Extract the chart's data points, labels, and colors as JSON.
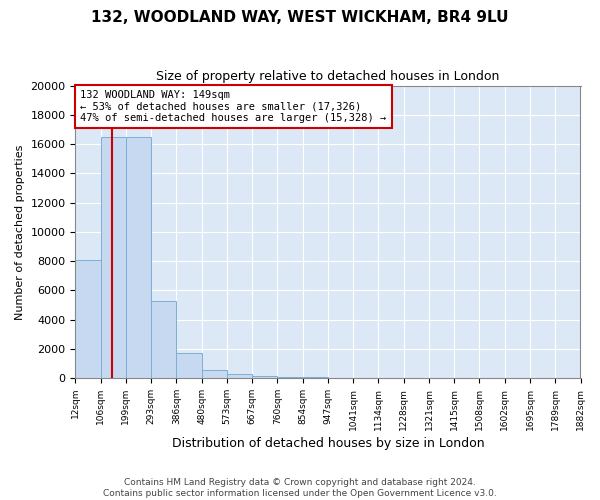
{
  "title": "132, WOODLAND WAY, WEST WICKHAM, BR4 9LU",
  "subtitle": "Size of property relative to detached houses in London",
  "xlabel": "Distribution of detached houses by size in London",
  "ylabel": "Number of detached properties",
  "bar_values": [
    8050,
    16500,
    16500,
    5300,
    1700,
    550,
    300,
    150,
    80,
    50,
    30,
    20,
    15,
    10,
    8,
    6,
    5,
    4,
    3,
    2
  ],
  "categories": [
    "12sqm",
    "106sqm",
    "199sqm",
    "293sqm",
    "386sqm",
    "480sqm",
    "573sqm",
    "667sqm",
    "760sqm",
    "854sqm",
    "947sqm",
    "1041sqm",
    "1134sqm",
    "1228sqm",
    "1321sqm",
    "1415sqm",
    "1508sqm",
    "1602sqm",
    "1695sqm",
    "1789sqm",
    "1882sqm"
  ],
  "bar_color": "#c6d9f0",
  "bar_edge_color": "#7bafd4",
  "annotation_title": "132 WOODLAND WAY: 149sqm",
  "annotation_line1": "← 53% of detached houses are smaller (17,326)",
  "annotation_line2": "47% of semi-detached houses are larger (15,328) →",
  "annotation_box_color": "#ffffff",
  "annotation_box_edge": "#cc0000",
  "red_line_color": "#cc0000",
  "ylim": [
    0,
    20000
  ],
  "yticks": [
    0,
    2000,
    4000,
    6000,
    8000,
    10000,
    12000,
    14000,
    16000,
    18000,
    20000
  ],
  "footnote1": "Contains HM Land Registry data © Crown copyright and database right 2024.",
  "footnote2": "Contains public sector information licensed under the Open Government Licence v3.0.",
  "plot_bg_color": "#dce8f5"
}
